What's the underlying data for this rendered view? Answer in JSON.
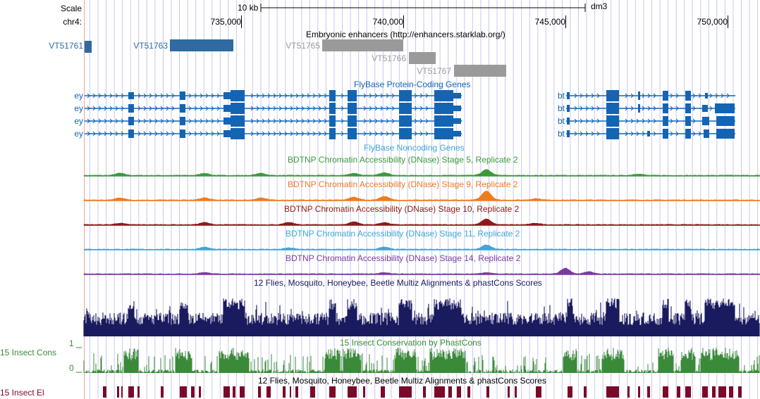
{
  "scale_label": "Scale",
  "scale_text": "10 kb",
  "assembly": "dm3",
  "chrom_label": "chr4:",
  "ruler_ticks": [
    "735,000",
    "740,000",
    "745,000",
    "750,000"
  ],
  "colors": {
    "enhancer_blue": "#2f6aa2",
    "enhancer_gray": "#9a9a9a",
    "gene_blue": "#1464b4",
    "dnase_stage5": "#3a9a3a",
    "dnase_stage9": "#f07a20",
    "dnase_stage10": "#901818",
    "dnase_stage11": "#3aa8d8",
    "dnase_stage14": "#7a3aa0",
    "multiz": "#1a1a5e",
    "phastcons": "#3a8a3a",
    "elements": "#7a0a2a",
    "guideline": "#c8c8f0",
    "left_guide": "#f0a0a0"
  },
  "tracks": {
    "enhancers": {
      "title": "Embryonic enhancers (http://enhancers.starklab.org/)",
      "items": [
        {
          "name": "VT51761",
          "active": true
        },
        {
          "name": "VT51763",
          "active": true
        },
        {
          "name": "VT51765",
          "active": false
        },
        {
          "name": "VT51766",
          "active": false
        },
        {
          "name": "VT51767",
          "active": false
        }
      ]
    },
    "coding_genes": {
      "title": "FlyBase Protein-Coding Genes",
      "left_labels": [
        "ey",
        "ey",
        "ey",
        "ey"
      ],
      "right_labels": [
        "bt",
        "bt",
        "bt",
        "bt"
      ]
    },
    "noncoding_genes": {
      "title": "FlyBase Noncoding Genes"
    },
    "dnase": [
      {
        "title": "BDTNP Chromatin Accessibility (DNase) Stage 5, Replicate 2"
      },
      {
        "title": "BDTNP Chromatin Accessibility (DNase) Stage 9, Replicate 2"
      },
      {
        "title": "BDTNP Chromatin Accessibility (DNase) Stage 10, Replicate 2"
      },
      {
        "title": "BDTNP Chromatin Accessibility (DNase) Stage 11, Replicate 2"
      },
      {
        "title": "BDTNP Chromatin Accessibility (DNase) Stage 14, Replicate 2"
      }
    ],
    "multiz": {
      "title": "12 Flies, Mosquito, Honeybee, Beetle Multiz Alignments & phastCons Scores"
    },
    "phastcons": {
      "side_label": "15 Insect Cons",
      "title": "15 Insect Conservation by PhastCons",
      "axis_max": "1",
      "axis_min": "0"
    },
    "elements": {
      "side_label": "15 Insect El",
      "title": "12 Flies, Mosquito, Honeybee, Beetle Multiz Alignments & phastCons Scores"
    }
  }
}
